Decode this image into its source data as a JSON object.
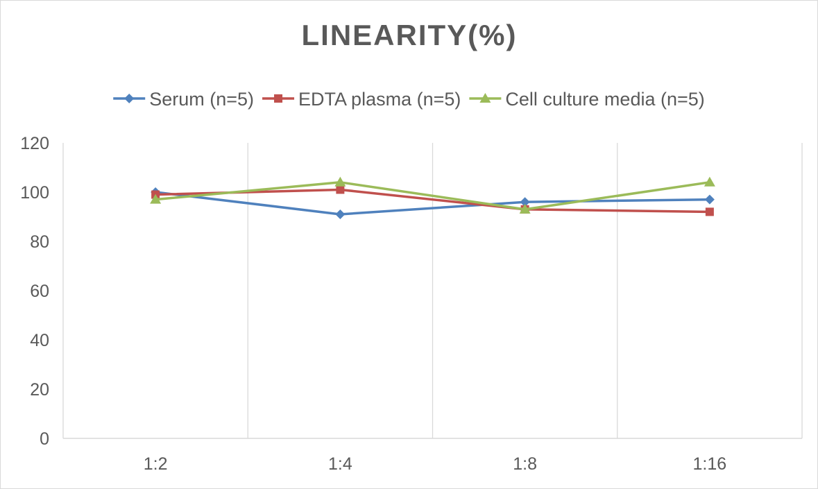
{
  "chart_data": {
    "type": "line",
    "title": "LINEARITY(%)",
    "categories": [
      "1:2",
      "1:4",
      "1:8",
      "1:16"
    ],
    "ylim": [
      0,
      120
    ],
    "yticks": [
      0,
      20,
      40,
      60,
      80,
      100,
      120
    ],
    "grid": "vertical",
    "legend_position": "top",
    "series": [
      {
        "name": "Serum (n=5)",
        "values": [
          100,
          91,
          96,
          97
        ],
        "color": "#4f81bd",
        "marker": "diamond"
      },
      {
        "name": "EDTA plasma (n=5)",
        "values": [
          99,
          101,
          93,
          92
        ],
        "color": "#c0504d",
        "marker": "square"
      },
      {
        "name": "Cell culture media (n=5)",
        "values": [
          97,
          104,
          93,
          104
        ],
        "color": "#9bbb59",
        "marker": "triangle"
      }
    ]
  }
}
